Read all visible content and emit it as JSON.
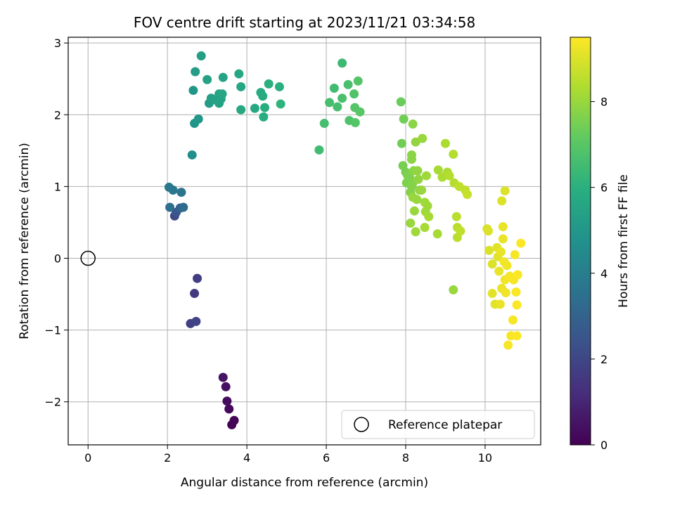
{
  "chart_data": {
    "type": "scatter",
    "title": "FOV centre drift starting at 2023/11/21 03:34:58",
    "xlabel": "Angular distance from reference (arcmin)",
    "ylabel": "Rotation from reference (arcmin)",
    "xlim": [
      -0.5,
      11.4
    ],
    "ylim": [
      -2.6,
      3.08
    ],
    "xticks": [
      0,
      2,
      4,
      6,
      8,
      10
    ],
    "yticks": [
      -2,
      -1,
      0,
      1,
      2,
      3
    ],
    "grid": true,
    "legend": {
      "placement": "lower-right",
      "entries": [
        "Reference platepar"
      ]
    },
    "colorbar": {
      "label": "Hours from first FF file",
      "colormap": "viridis",
      "range": [
        0,
        9.5
      ],
      "ticks": [
        0,
        2,
        4,
        6,
        8
      ]
    },
    "reference_point": {
      "x": 0,
      "y": 0,
      "label": "Reference platepar"
    },
    "points": [
      {
        "x": 3.62,
        "y": -2.32,
        "t": 0.05
      },
      {
        "x": 3.68,
        "y": -2.26,
        "t": 0.1
      },
      {
        "x": 3.55,
        "y": -2.1,
        "t": 0.2
      },
      {
        "x": 3.5,
        "y": -1.99,
        "t": 0.3
      },
      {
        "x": 3.47,
        "y": -1.79,
        "t": 0.4
      },
      {
        "x": 3.4,
        "y": -1.66,
        "t": 0.5
      },
      {
        "x": 2.58,
        "y": -0.91,
        "t": 1.8
      },
      {
        "x": 2.72,
        "y": -0.88,
        "t": 1.9
      },
      {
        "x": 2.68,
        "y": -0.49,
        "t": 1.6
      },
      {
        "x": 2.75,
        "y": -0.28,
        "t": 1.7
      },
      {
        "x": 2.18,
        "y": 0.59,
        "t": 2.1
      },
      {
        "x": 2.22,
        "y": 0.64,
        "t": 2.5
      },
      {
        "x": 2.32,
        "y": 0.7,
        "t": 3.0
      },
      {
        "x": 2.4,
        "y": 0.71,
        "t": 3.3
      },
      {
        "x": 2.06,
        "y": 0.71,
        "t": 3.5
      },
      {
        "x": 2.35,
        "y": 0.92,
        "t": 3.6
      },
      {
        "x": 2.14,
        "y": 0.95,
        "t": 3.7
      },
      {
        "x": 2.04,
        "y": 0.99,
        "t": 3.8
      },
      {
        "x": 2.62,
        "y": 1.44,
        "t": 4.7
      },
      {
        "x": 2.68,
        "y": 1.88,
        "t": 4.9
      },
      {
        "x": 2.78,
        "y": 1.94,
        "t": 5.0
      },
      {
        "x": 2.65,
        "y": 2.34,
        "t": 5.0
      },
      {
        "x": 2.7,
        "y": 2.6,
        "t": 5.2
      },
      {
        "x": 2.85,
        "y": 2.82,
        "t": 5.3
      },
      {
        "x": 3.05,
        "y": 2.16,
        "t": 5.2
      },
      {
        "x": 3.1,
        "y": 2.23,
        "t": 5.3
      },
      {
        "x": 3.2,
        "y": 2.21,
        "t": 5.4
      },
      {
        "x": 3.3,
        "y": 2.16,
        "t": 5.4
      },
      {
        "x": 3.35,
        "y": 2.22,
        "t": 5.5
      },
      {
        "x": 3.3,
        "y": 2.29,
        "t": 5.5
      },
      {
        "x": 3.38,
        "y": 2.29,
        "t": 5.6
      },
      {
        "x": 3.0,
        "y": 2.49,
        "t": 5.4
      },
      {
        "x": 3.4,
        "y": 2.52,
        "t": 5.5
      },
      {
        "x": 3.8,
        "y": 2.57,
        "t": 5.6
      },
      {
        "x": 3.85,
        "y": 2.39,
        "t": 5.6
      },
      {
        "x": 3.85,
        "y": 2.07,
        "t": 5.7
      },
      {
        "x": 4.2,
        "y": 2.09,
        "t": 5.7
      },
      {
        "x": 4.35,
        "y": 2.31,
        "t": 5.8
      },
      {
        "x": 4.4,
        "y": 2.26,
        "t": 5.8
      },
      {
        "x": 4.42,
        "y": 1.97,
        "t": 5.9
      },
      {
        "x": 4.45,
        "y": 2.1,
        "t": 5.9
      },
      {
        "x": 4.55,
        "y": 2.43,
        "t": 6.0
      },
      {
        "x": 4.82,
        "y": 2.39,
        "t": 6.0
      },
      {
        "x": 4.85,
        "y": 2.15,
        "t": 6.1
      },
      {
        "x": 5.82,
        "y": 1.51,
        "t": 6.5
      },
      {
        "x": 5.95,
        "y": 1.88,
        "t": 6.6
      },
      {
        "x": 6.08,
        "y": 2.17,
        "t": 6.6
      },
      {
        "x": 6.2,
        "y": 2.37,
        "t": 6.5
      },
      {
        "x": 6.28,
        "y": 2.11,
        "t": 6.6
      },
      {
        "x": 6.4,
        "y": 2.23,
        "t": 6.7
      },
      {
        "x": 6.4,
        "y": 2.72,
        "t": 6.4
      },
      {
        "x": 6.55,
        "y": 2.42,
        "t": 6.7
      },
      {
        "x": 6.58,
        "y": 1.92,
        "t": 6.8
      },
      {
        "x": 6.7,
        "y": 2.29,
        "t": 6.8
      },
      {
        "x": 6.72,
        "y": 2.1,
        "t": 6.9
      },
      {
        "x": 6.73,
        "y": 1.89,
        "t": 6.9
      },
      {
        "x": 6.8,
        "y": 2.47,
        "t": 6.9
      },
      {
        "x": 6.85,
        "y": 2.04,
        "t": 7.0
      },
      {
        "x": 7.88,
        "y": 2.18,
        "t": 7.3
      },
      {
        "x": 7.95,
        "y": 1.94,
        "t": 7.4
      },
      {
        "x": 7.9,
        "y": 1.6,
        "t": 7.4
      },
      {
        "x": 7.93,
        "y": 1.29,
        "t": 7.5
      },
      {
        "x": 8.0,
        "y": 1.2,
        "t": 7.5
      },
      {
        "x": 8.05,
        "y": 1.15,
        "t": 7.6
      },
      {
        "x": 8.02,
        "y": 1.05,
        "t": 7.6
      },
      {
        "x": 8.1,
        "y": 1.12,
        "t": 7.6
      },
      {
        "x": 8.15,
        "y": 1.0,
        "t": 7.7
      },
      {
        "x": 8.12,
        "y": 0.92,
        "t": 7.7
      },
      {
        "x": 8.18,
        "y": 1.05,
        "t": 7.7
      },
      {
        "x": 8.2,
        "y": 1.22,
        "t": 7.8
      },
      {
        "x": 8.15,
        "y": 1.44,
        "t": 7.8
      },
      {
        "x": 8.15,
        "y": 1.38,
        "t": 7.8
      },
      {
        "x": 8.18,
        "y": 1.87,
        "t": 7.8
      },
      {
        "x": 8.25,
        "y": 1.62,
        "t": 7.9
      },
      {
        "x": 8.3,
        "y": 1.22,
        "t": 7.9
      },
      {
        "x": 8.32,
        "y": 1.1,
        "t": 7.9
      },
      {
        "x": 8.35,
        "y": 0.95,
        "t": 7.9
      },
      {
        "x": 8.18,
        "y": 0.85,
        "t": 8.0
      },
      {
        "x": 8.28,
        "y": 0.82,
        "t": 8.0
      },
      {
        "x": 8.12,
        "y": 0.49,
        "t": 8.0
      },
      {
        "x": 8.22,
        "y": 0.66,
        "t": 8.0
      },
      {
        "x": 8.25,
        "y": 0.37,
        "t": 8.1
      },
      {
        "x": 8.4,
        "y": 0.95,
        "t": 8.0
      },
      {
        "x": 8.42,
        "y": 1.67,
        "t": 8.0
      },
      {
        "x": 8.48,
        "y": 0.78,
        "t": 8.1
      },
      {
        "x": 8.5,
        "y": 0.65,
        "t": 8.1
      },
      {
        "x": 8.52,
        "y": 1.15,
        "t": 8.1
      },
      {
        "x": 8.55,
        "y": 0.73,
        "t": 8.1
      },
      {
        "x": 8.58,
        "y": 0.58,
        "t": 8.2
      },
      {
        "x": 8.48,
        "y": 0.43,
        "t": 8.2
      },
      {
        "x": 8.8,
        "y": 0.34,
        "t": 8.2
      },
      {
        "x": 8.82,
        "y": 1.23,
        "t": 8.2
      },
      {
        "x": 8.92,
        "y": 1.13,
        "t": 8.3
      },
      {
        "x": 9.0,
        "y": 1.6,
        "t": 8.3
      },
      {
        "x": 9.05,
        "y": 1.2,
        "t": 8.3
      },
      {
        "x": 9.1,
        "y": 1.15,
        "t": 8.4
      },
      {
        "x": 9.2,
        "y": 1.45,
        "t": 8.4
      },
      {
        "x": 9.22,
        "y": 1.05,
        "t": 8.4
      },
      {
        "x": 9.28,
        "y": 0.58,
        "t": 8.5
      },
      {
        "x": 9.3,
        "y": 0.43,
        "t": 8.5
      },
      {
        "x": 9.3,
        "y": 0.29,
        "t": 8.5
      },
      {
        "x": 9.38,
        "y": 0.38,
        "t": 8.6
      },
      {
        "x": 9.35,
        "y": 1.0,
        "t": 8.6
      },
      {
        "x": 9.5,
        "y": 0.95,
        "t": 8.6
      },
      {
        "x": 9.55,
        "y": 0.89,
        "t": 8.7
      },
      {
        "x": 9.2,
        "y": -0.44,
        "t": 8.0
      },
      {
        "x": 10.05,
        "y": 0.41,
        "t": 8.9
      },
      {
        "x": 10.08,
        "y": 0.38,
        "t": 9.0
      },
      {
        "x": 10.1,
        "y": 0.11,
        "t": 9.0
      },
      {
        "x": 10.18,
        "y": -0.08,
        "t": 9.0
      },
      {
        "x": 10.18,
        "y": -0.49,
        "t": 9.1
      },
      {
        "x": 10.25,
        "y": -0.64,
        "t": 9.1
      },
      {
        "x": 10.3,
        "y": 0.15,
        "t": 9.1
      },
      {
        "x": 10.32,
        "y": 0.02,
        "t": 9.1
      },
      {
        "x": 10.35,
        "y": -0.18,
        "t": 9.2
      },
      {
        "x": 10.38,
        "y": -0.64,
        "t": 9.2
      },
      {
        "x": 10.4,
        "y": 0.09,
        "t": 9.2
      },
      {
        "x": 10.42,
        "y": -0.42,
        "t": 9.2
      },
      {
        "x": 10.45,
        "y": 0.27,
        "t": 9.2
      },
      {
        "x": 10.45,
        "y": 0.44,
        "t": 9.2
      },
      {
        "x": 10.42,
        "y": 0.8,
        "t": 9.0
      },
      {
        "x": 10.5,
        "y": 0.94,
        "t": 9.0
      },
      {
        "x": 10.48,
        "y": -0.05,
        "t": 9.3
      },
      {
        "x": 10.5,
        "y": -0.3,
        "t": 9.3
      },
      {
        "x": 10.52,
        "y": -0.48,
        "t": 9.3
      },
      {
        "x": 10.55,
        "y": -0.1,
        "t": 9.3
      },
      {
        "x": 10.58,
        "y": -1.21,
        "t": 9.4
      },
      {
        "x": 10.62,
        "y": -0.25,
        "t": 9.4
      },
      {
        "x": 10.65,
        "y": -1.08,
        "t": 9.4
      },
      {
        "x": 10.7,
        "y": -0.86,
        "t": 9.4
      },
      {
        "x": 10.72,
        "y": -0.3,
        "t": 9.4
      },
      {
        "x": 10.75,
        "y": 0.05,
        "t": 9.4
      },
      {
        "x": 10.78,
        "y": -0.47,
        "t": 9.45
      },
      {
        "x": 10.8,
        "y": -0.65,
        "t": 9.45
      },
      {
        "x": 10.8,
        "y": -1.08,
        "t": 9.45
      },
      {
        "x": 10.82,
        "y": -0.23,
        "t": 9.45
      },
      {
        "x": 10.9,
        "y": 0.21,
        "t": 9.48
      }
    ]
  }
}
